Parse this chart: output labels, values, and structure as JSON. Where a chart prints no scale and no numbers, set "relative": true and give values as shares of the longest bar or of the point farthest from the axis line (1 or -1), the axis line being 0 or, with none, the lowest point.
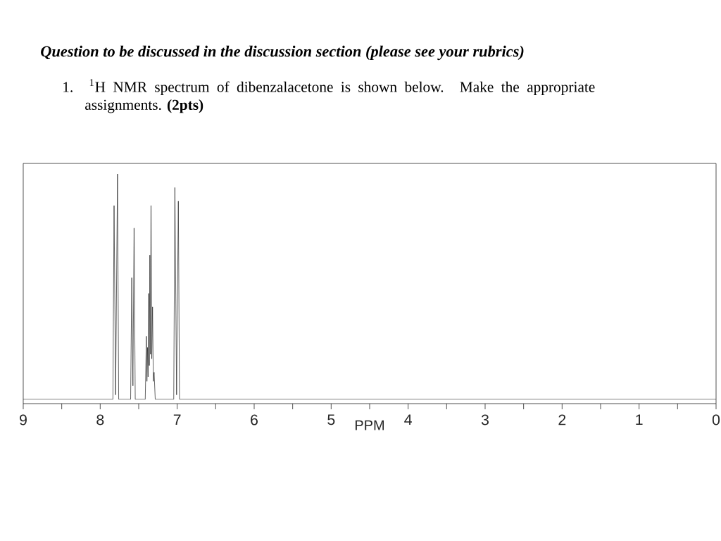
{
  "chart_data": {
    "type": "line",
    "title": "Question to be discussed in the discussion section (please see your rubrics)",
    "subtitle": "1. $^{1}$H NMR spectrum of dibenzalacetone is shown below. Make the appropriate assignments. **(2pts)**",
    "xlabel": "PPM",
    "relative": true,
    "x": [
      9,
      7.835,
      7.82,
      7.8,
      7.775,
      7.76,
      7.605,
      7.59,
      7.575,
      7.56,
      7.545,
      7.415,
      7.4,
      7.393,
      7.385,
      7.378,
      7.37,
      7.362,
      7.355,
      7.347,
      7.34,
      7.33,
      7.32,
      7.31,
      7.3,
      7.285,
      7.045,
      7.03,
      7.008,
      6.985,
      6.97,
      0
    ],
    "values": [
      0,
      0,
      0.86,
      0.02,
      1,
      0,
      0,
      0.54,
      0.06,
      0.76,
      0,
      0,
      0.28,
      0.08,
      0.23,
      0.1,
      0.47,
      0.15,
      0.64,
      0.2,
      0.86,
      0.18,
      0.41,
      0.08,
      0.12,
      0,
      0,
      0.94,
      0.02,
      0.88,
      0,
      0
    ],
    "color": "#2b2b2b",
    "xlim": [
      9,
      0
    ],
    "xticks": [
      9,
      {
        "value": 8.5,
        "label": null
      },
      8,
      {
        "value": 7.5,
        "label": null
      },
      7,
      {
        "value": 6.5,
        "label": null
      },
      6,
      {
        "value": 5.5,
        "label": null
      },
      5,
      {
        "value": 4.5,
        "label": null
      },
      4,
      {
        "value": 3.5,
        "label": null
      },
      3,
      {
        "value": 2.5,
        "label": null
      },
      2,
      {
        "value": 1.5,
        "label": null
      },
      1,
      {
        "value": 0.5,
        "label": null
      },
      0
    ]
  }
}
